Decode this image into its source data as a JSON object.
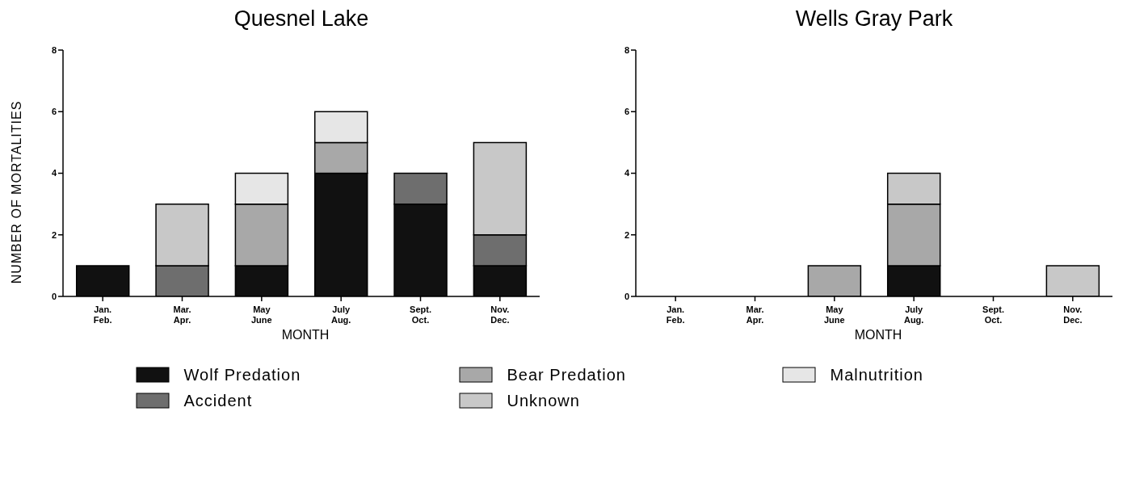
{
  "chart_data": [
    {
      "type": "bar",
      "title": "Quesnel Lake",
      "xlabel": "MONTH",
      "ylabel": "NUMBER OF MORTALITIES",
      "categories": [
        "Jan.\nFeb.",
        "Mar.\nApr.",
        "May\nJune",
        "July\nAug.",
        "Sept.\nOct.",
        "Nov.\nDec."
      ],
      "stacked": true,
      "ylim": [
        0,
        8
      ],
      "yticks": [
        0,
        2,
        4,
        6,
        8
      ],
      "grid": false,
      "legend": "bottom",
      "series": [
        {
          "name": "Wolf Predation",
          "color": "#111111",
          "values": [
            1,
            0,
            1,
            4,
            3,
            1
          ]
        },
        {
          "name": "Accident",
          "color": "#6e6e6e",
          "values": [
            0,
            1,
            0,
            0,
            1,
            1
          ]
        },
        {
          "name": "Bear Predation",
          "color": "#a8a8a8",
          "values": [
            0,
            0,
            2,
            1,
            0,
            0
          ]
        },
        {
          "name": "Unknown",
          "color": "#c8c8c8",
          "values": [
            0,
            2,
            0,
            0,
            0,
            3
          ]
        },
        {
          "name": "Malnutrition",
          "color": "#e6e6e6",
          "values": [
            0,
            0,
            1,
            1,
            0,
            0
          ]
        }
      ]
    },
    {
      "type": "bar",
      "title": "Wells Gray Park",
      "xlabel": "MONTH",
      "categories": [
        "Jan.\nFeb.",
        "Mar.\nApr.",
        "May\nJune",
        "July\nAug.",
        "Sept.\nOct.",
        "Nov.\nDec."
      ],
      "stacked": true,
      "ylim": [
        0,
        8
      ],
      "yticks": [
        0,
        2,
        4,
        6,
        8
      ],
      "grid": false,
      "series": [
        {
          "color": "#111111",
          "values": [
            0,
            0,
            0,
            1,
            0,
            0
          ]
        },
        {
          "color": "#6e6e6e",
          "values": [
            0,
            0,
            0,
            0,
            0,
            0
          ]
        },
        {
          "color": "#a8a8a8",
          "values": [
            0,
            0,
            1,
            2,
            0,
            0
          ]
        },
        {
          "color": "#c8c8c8",
          "values": [
            0,
            0,
            0,
            1,
            0,
            1
          ]
        },
        {
          "color": "#e6e6e6",
          "values": [
            0,
            0,
            0,
            0,
            0,
            0
          ]
        }
      ]
    }
  ]
}
